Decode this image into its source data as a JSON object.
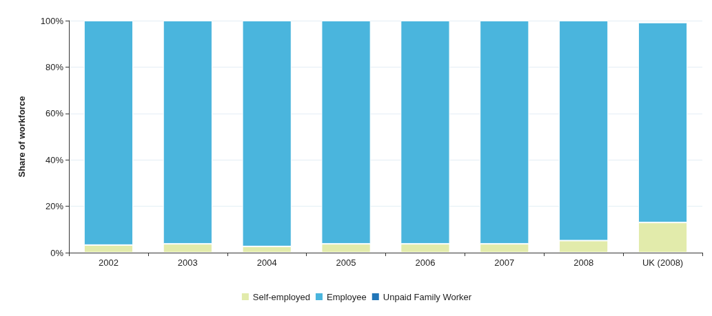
{
  "chart_data": {
    "type": "bar",
    "stacked": true,
    "ylabel": "Share of workforce",
    "categories": [
      "2002",
      "2003",
      "2004",
      "2005",
      "2006",
      "2007",
      "2008",
      "UK (2008)"
    ],
    "series": [
      {
        "name": "Self-employed",
        "color": "#e2ebab",
        "values": [
          3.3,
          3.8,
          2.7,
          3.8,
          3.8,
          3.8,
          5.2,
          13
        ]
      },
      {
        "name": "Employee",
        "color": "#4ab5dd",
        "values": [
          96.7,
          96.2,
          97.3,
          96.2,
          96.2,
          96.2,
          94.8,
          86.2
        ]
      },
      {
        "name": "Unpaid Family Worker",
        "color": "#2276b8",
        "values": [
          null,
          null,
          null,
          null,
          null,
          null,
          null,
          null
        ]
      }
    ],
    "ylim": [
      0,
      100
    ],
    "yticks": [
      {
        "value": 0,
        "label": "0%"
      },
      {
        "value": 20,
        "label": "20%"
      },
      {
        "value": 40,
        "label": "40%"
      },
      {
        "value": 60,
        "label": "60%"
      },
      {
        "value": 80,
        "label": "80%"
      },
      {
        "value": 100,
        "label": "100%"
      }
    ],
    "grid": "y",
    "legend": "bottom"
  }
}
